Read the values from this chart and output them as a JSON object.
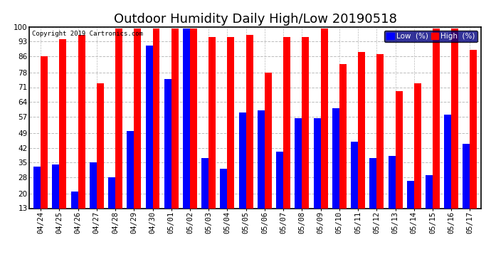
{
  "title": "Outdoor Humidity Daily High/Low 20190518",
  "copyright": "Copyright 2019 Cartronics.com",
  "categories": [
    "04/24",
    "04/25",
    "04/26",
    "04/27",
    "04/28",
    "04/29",
    "04/30",
    "05/01",
    "05/02",
    "05/03",
    "05/04",
    "05/05",
    "05/06",
    "05/07",
    "05/08",
    "05/09",
    "05/10",
    "05/11",
    "05/12",
    "05/13",
    "05/14",
    "05/15",
    "05/16",
    "05/17"
  ],
  "high": [
    86,
    94,
    96,
    73,
    99,
    99,
    99,
    99,
    99,
    95,
    95,
    96,
    78,
    95,
    95,
    99,
    82,
    88,
    87,
    69,
    73,
    99,
    99,
    89
  ],
  "low": [
    33,
    34,
    21,
    35,
    28,
    50,
    91,
    75,
    99,
    37,
    32,
    59,
    60,
    40,
    56,
    56,
    61,
    45,
    37,
    38,
    26,
    29,
    58,
    44
  ],
  "high_color": "#ff0000",
  "low_color": "#0000ff",
  "bg_color": "#ffffff",
  "grid_color": "#bbbbbb",
  "ylabel_values": [
    13,
    20,
    28,
    35,
    42,
    49,
    57,
    64,
    71,
    78,
    86,
    93,
    100
  ],
  "ymin": 13,
  "ymax": 100,
  "bar_width": 0.38,
  "title_fontsize": 13,
  "tick_fontsize": 7.5,
  "legend_low_label": "Low  (%)",
  "legend_high_label": "High  (%)"
}
